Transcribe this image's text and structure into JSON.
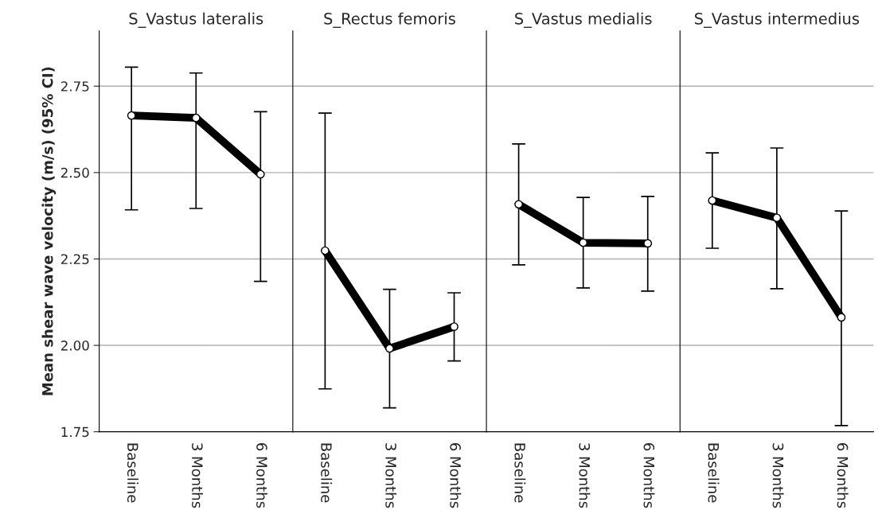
{
  "chart_data": [
    {
      "type": "line",
      "title": "S_Vastus lateralis",
      "ylabel": "Mean shear wave velocity (m/s) (95% CI)",
      "categories": [
        "Baseline",
        "3 Months",
        "6 Months"
      ],
      "ylim": [
        1.75,
        2.91
      ],
      "yticks": [
        {
          "value": 1.75,
          "label": "1.75"
        },
        {
          "value": 2.0,
          "label": "2.00"
        },
        {
          "value": 2.25,
          "label": "2.25"
        },
        {
          "value": 2.5,
          "label": "2.50"
        },
        {
          "value": 2.75,
          "label": "2.75"
        }
      ],
      "grid": "y",
      "marker": "circle",
      "line_style": "solid",
      "series": [
        {
          "color": "#000000",
          "values": [
            2.665,
            2.658,
            2.495
          ],
          "errors": [
            [
              2.392,
              2.805
            ],
            [
              2.396,
              2.788
            ],
            [
              2.185,
              2.676
            ]
          ]
        }
      ]
    },
    {
      "type": "line",
      "title": "S_Rectus femoris",
      "categories": [
        "Baseline",
        "3 Months",
        "6 Months"
      ],
      "ylim": [
        1.75,
        2.91
      ],
      "yticks": [
        1.75,
        2.0,
        2.25,
        2.5,
        2.75
      ],
      "tick_labels": "x",
      "grid": "y",
      "marker": "circle",
      "line_style": "solid",
      "series": [
        {
          "color": "#000000",
          "values": [
            2.274,
            1.991,
            2.054
          ],
          "errors": [
            [
              1.874,
              2.672
            ],
            [
              1.819,
              2.162
            ],
            [
              1.955,
              2.152
            ]
          ]
        }
      ]
    },
    {
      "type": "line",
      "title": "S_Vastus medialis",
      "categories": [
        "Baseline",
        "3 Months",
        "6 Months"
      ],
      "ylim": [
        1.75,
        2.91
      ],
      "yticks": [
        1.75,
        2.0,
        2.25,
        2.5,
        2.75
      ],
      "tick_labels": "x",
      "grid": "y",
      "marker": "circle",
      "line_style": "solid",
      "series": [
        {
          "color": "#000000",
          "values": [
            2.408,
            2.297,
            2.295
          ],
          "errors": [
            [
              2.233,
              2.583
            ],
            [
              2.166,
              2.428
            ],
            [
              2.157,
              2.431
            ]
          ]
        }
      ]
    },
    {
      "type": "line",
      "title": "S_Vastus intermedius",
      "categories": [
        "Baseline",
        "3 Months",
        "6 Months"
      ],
      "ylim": [
        1.75,
        2.91
      ],
      "yticks": [
        1.75,
        2.0,
        2.25,
        2.5,
        2.75
      ],
      "tick_labels": "x",
      "grid": "y",
      "marker": "circle",
      "line_style": "solid",
      "series": [
        {
          "color": "#000000",
          "values": [
            2.419,
            2.369,
            2.081
          ],
          "errors": [
            [
              2.281,
              2.557
            ],
            [
              2.164,
              2.571
            ],
            [
              1.768,
              2.389
            ]
          ]
        }
      ]
    }
  ]
}
